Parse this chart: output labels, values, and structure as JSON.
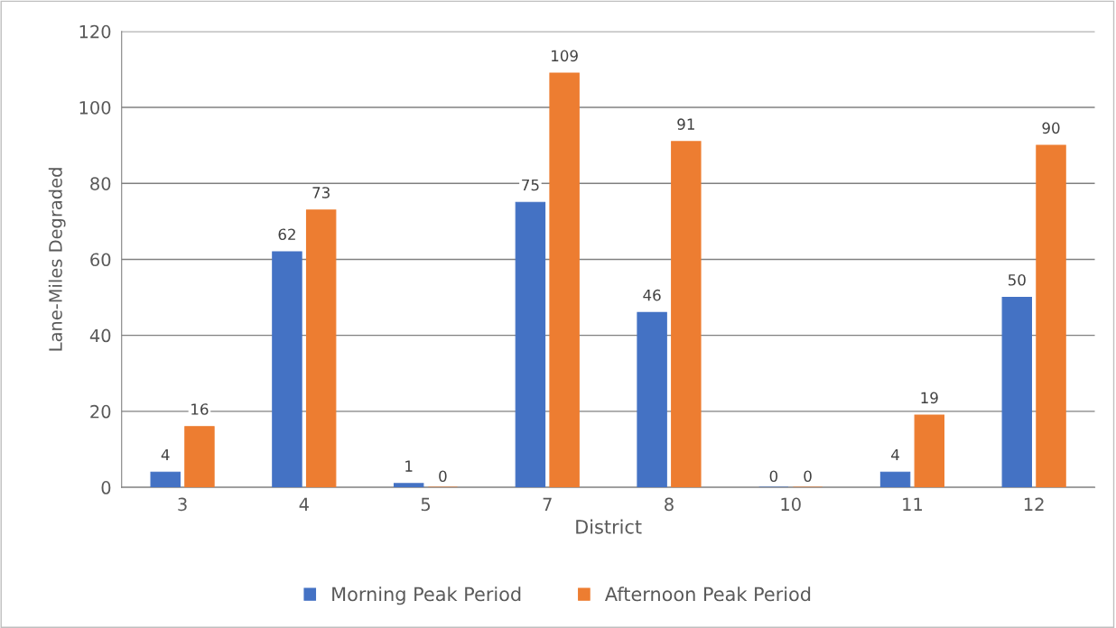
{
  "chart_data": {
    "type": "bar",
    "xlabel": "District",
    "ylabel": "Lane-Miles Degraded",
    "categories": [
      "3",
      "4",
      "5",
      "7",
      "8",
      "10",
      "11",
      "12"
    ],
    "series": [
      {
        "name": "Morning Peak Period",
        "color": "#4472c4",
        "values": [
          4,
          62,
          1,
          75,
          46,
          0,
          4,
          50
        ]
      },
      {
        "name": "Afternoon Peak Period",
        "color": "#ed7d31",
        "values": [
          16,
          73,
          0,
          109,
          91,
          0,
          19,
          90
        ]
      }
    ],
    "ylim": [
      0,
      120
    ],
    "yticks": [
      0,
      20,
      40,
      60,
      80,
      100,
      120
    ],
    "grid": "y",
    "legend": "bottom",
    "data_labels": true
  }
}
